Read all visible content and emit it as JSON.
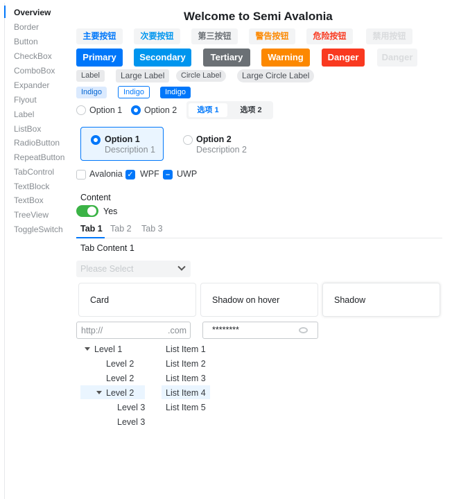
{
  "sidebar": {
    "items": [
      "Overview",
      "Border",
      "Button",
      "CheckBox",
      "ComboBox",
      "Expander",
      "Flyout",
      "Label",
      "ListBox",
      "RadioButton",
      "RepeatButton",
      "TabControl",
      "TextBlock",
      "TextBox",
      "TreeView",
      "ToggleSwitch"
    ],
    "active": "Overview"
  },
  "title": "Welcome to Semi Avalonia",
  "light_buttons": [
    {
      "label": "主要按钮",
      "color": "#0077fa"
    },
    {
      "label": "次要按钮",
      "color": "#0095ee"
    },
    {
      "label": "第三按钮",
      "color": "#6b7075"
    },
    {
      "label": "警告按钮",
      "color": "#fc8800"
    },
    {
      "label": "危险按钮",
      "color": "#f93920"
    },
    {
      "label": "禁用按钮",
      "color": "#d9dbdd"
    }
  ],
  "solid_buttons": [
    {
      "label": "Primary",
      "color": "#0077fa"
    },
    {
      "label": "Secondary",
      "color": "#0095ee"
    },
    {
      "label": "Tertiary",
      "color": "#6b7075"
    },
    {
      "label": "Warning",
      "color": "#fc8800"
    },
    {
      "label": "Danger",
      "color": "#f93920"
    },
    {
      "label": "Danger",
      "color": "#f3f4f5"
    }
  ],
  "labels": [
    "Label",
    "Large Label",
    "Circle Label",
    "Large Circle Label"
  ],
  "indigo_tags": [
    "Indigo",
    "Indigo",
    "Indigo"
  ],
  "radios": {
    "option1": "Option 1",
    "option2": "Option 2",
    "selected": "Option 2"
  },
  "segmented": {
    "items": [
      "选项 1",
      "选项 2"
    ],
    "selected": "选项 1"
  },
  "radio_cards": [
    {
      "title": "Option 1",
      "desc": "Description 1",
      "selected": true
    },
    {
      "title": "Option 2",
      "desc": "Description 2",
      "selected": false
    }
  ],
  "checkboxes": [
    {
      "label": "Avalonia",
      "state": "unchecked"
    },
    {
      "label": "WPF",
      "state": "checked"
    },
    {
      "label": "UWP",
      "state": "indeterminate"
    }
  ],
  "toggle": {
    "header": "Content",
    "label": "Yes",
    "on": true
  },
  "tabs": {
    "items": [
      "Tab 1",
      "Tab 2",
      "Tab 3"
    ],
    "selected": "Tab 1",
    "content": "Tab Content 1"
  },
  "combo": {
    "placeholder": "Please Select"
  },
  "cards": [
    "Card",
    "Shadow on hover",
    "Shadow"
  ],
  "url_input": {
    "prefix": "http://",
    "suffix": ".com",
    "value": ""
  },
  "password": {
    "value": "********"
  },
  "tree": [
    "Level 1",
    "Level 2",
    "Level 2",
    "Level 2",
    "Level 3",
    "Level 3"
  ],
  "list": {
    "items": [
      "List Item 1",
      "List Item 2",
      "List Item 3",
      "List Item 4",
      "List Item 5"
    ],
    "selected": "List Item 4"
  }
}
